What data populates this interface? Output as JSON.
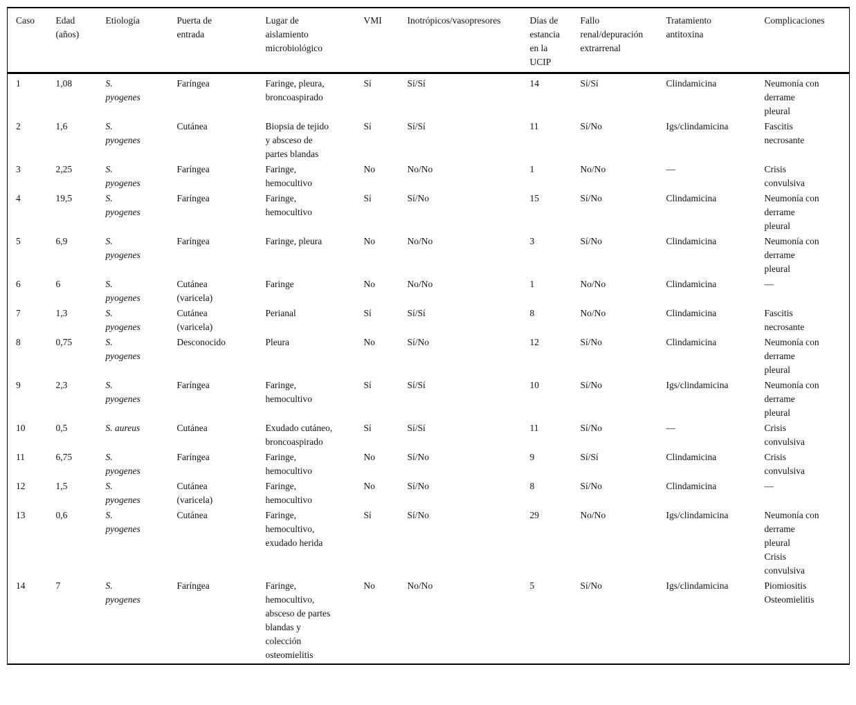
{
  "table": {
    "columns": [
      "Caso",
      "Edad (años)",
      "Etiología",
      "Puerta de entrada",
      "Lugar de aislamiento microbiológico",
      "VMI",
      "Inotrópicos/vasopresores",
      "Días de estancia en la UCIP",
      "Fallo renal/depuración extrarrenal",
      "Tratamiento antitoxina",
      "Complicaciones"
    ],
    "keys": [
      "caso",
      "edad",
      "etiologia",
      "puerta",
      "lugar",
      "vmi",
      "inotropicos",
      "dias",
      "fallo",
      "tratamiento",
      "complicaciones"
    ],
    "rows": [
      {
        "caso": "1",
        "edad": "1,08",
        "etiologia": "S. pyogenes",
        "puerta": "Faríngea",
        "lugar": "Faringe, pleura, broncoaspirado",
        "vmi": "Sí",
        "inotropicos": "Sí/Sí",
        "dias": "14",
        "fallo": "Sí/Sí",
        "tratamiento": "Clindamicina",
        "complicaciones": [
          "Neumonía con derrame pleural"
        ]
      },
      {
        "caso": "2",
        "edad": "1,6",
        "etiologia": "S. pyogenes",
        "puerta": "Cutánea",
        "lugar": "Biopsia de tejido y absceso de partes blandas",
        "vmi": "Sí",
        "inotropicos": "Sí/Sí",
        "dias": "11",
        "fallo": "Sí/No",
        "tratamiento": "Igs/clindamicina",
        "complicaciones": [
          "Fascitis necrosante"
        ]
      },
      {
        "caso": "3",
        "edad": "2,25",
        "etiologia": "S. pyogenes",
        "puerta": "Faríngea",
        "lugar": "Faringe, hemocultivo",
        "vmi": "No",
        "inotropicos": "No/No",
        "dias": "1",
        "fallo": "No/No",
        "tratamiento": "—",
        "complicaciones": [
          "Crisis convulsiva"
        ]
      },
      {
        "caso": "4",
        "edad": "19,5",
        "etiologia": "S. pyogenes",
        "puerta": "Faríngea",
        "lugar": "Faringe, hemocultivo",
        "vmi": "Sí",
        "inotropicos": "Sí/No",
        "dias": "15",
        "fallo": "Sí/No",
        "tratamiento": "Clindamicina",
        "complicaciones": [
          "Neumonía con derrame pleural"
        ]
      },
      {
        "caso": "5",
        "edad": "6,9",
        "etiologia": "S. pyogenes",
        "puerta": "Faríngea",
        "lugar": "Faringe, pleura",
        "vmi": "No",
        "inotropicos": "No/No",
        "dias": "3",
        "fallo": "Sí/No",
        "tratamiento": "Clindamicina",
        "complicaciones": [
          "Neumonía con derrame pleural"
        ]
      },
      {
        "caso": "6",
        "edad": "6",
        "etiologia": "S. pyogenes",
        "puerta": "Cutánea (varicela)",
        "lugar": "Faringe",
        "vmi": "No",
        "inotropicos": "No/No",
        "dias": "1",
        "fallo": "No/No",
        "tratamiento": "Clindamicina",
        "complicaciones": [
          "—"
        ]
      },
      {
        "caso": "7",
        "edad": "1,3",
        "etiologia": "S. pyogenes",
        "puerta": "Cutánea (varicela)",
        "lugar": "Perianal",
        "vmi": "Sí",
        "inotropicos": "Sí/Sí",
        "dias": "8",
        "fallo": "No/No",
        "tratamiento": "Clindamicina",
        "complicaciones": [
          "Fascitis necrosante"
        ]
      },
      {
        "caso": "8",
        "edad": "0,75",
        "etiologia": "S. pyogenes",
        "puerta": "Desconocido",
        "lugar": "Pleura",
        "vmi": "No",
        "inotropicos": "Sí/No",
        "dias": "12",
        "fallo": "Sí/No",
        "tratamiento": "Clindamicina",
        "complicaciones": [
          "Neumonía con derrame pleural"
        ]
      },
      {
        "caso": "9",
        "edad": "2,3",
        "etiologia": "S. pyogenes",
        "puerta": "Faríngea",
        "lugar": "Faringe, hemocultivo",
        "vmi": "Sí",
        "inotropicos": "Sí/Sí",
        "dias": "10",
        "fallo": "Sí/No",
        "tratamiento": "Igs/clindamicina",
        "complicaciones": [
          "Neumonía con derrame pleural"
        ]
      },
      {
        "caso": "10",
        "edad": "0,5",
        "etiologia": "S. aureus",
        "puerta": "Cutánea",
        "lugar": "Exudado cutáneo, broncoaspirado",
        "vmi": "Sí",
        "inotropicos": "Sí/Sí",
        "dias": "11",
        "fallo": "Sí/No",
        "tratamiento": "—",
        "complicaciones": [
          "Crisis convulsiva"
        ]
      },
      {
        "caso": "11",
        "edad": "6,75",
        "etiologia": "S. pyogenes",
        "puerta": "Faríngea",
        "lugar": "Faringe, hemocultivo",
        "vmi": "No",
        "inotropicos": "Sí/No",
        "dias": "9",
        "fallo": "Sí/Sí",
        "tratamiento": "Clindamicina",
        "complicaciones": [
          "Crisis convulsiva"
        ]
      },
      {
        "caso": "12",
        "edad": "1,5",
        "etiologia": "S. pyogenes",
        "puerta": "Cutánea (varicela)",
        "lugar": "Faringe, hemocultivo",
        "vmi": "No",
        "inotropicos": "Sí/No",
        "dias": "8",
        "fallo": "Sí/No",
        "tratamiento": "Clindamicina",
        "complicaciones": [
          "—"
        ]
      },
      {
        "caso": "13",
        "edad": "0,6",
        "etiologia": "S. pyogenes",
        "puerta": "Cutánea",
        "lugar": "Faringe, hemocultivo, exudado herida",
        "vmi": "Sí",
        "inotropicos": "Sí/No",
        "dias": "29",
        "fallo": "No/No",
        "tratamiento": "Igs/clindamicina",
        "complicaciones": [
          "Neumonía con derrame pleural",
          "Crisis convulsiva"
        ]
      },
      {
        "caso": "14",
        "edad": "7",
        "etiologia": "S. pyogenes",
        "puerta": "Faríngea",
        "lugar": "Faringe, hemocultivo, absceso de partes blandas y colección osteomielitis",
        "vmi": "No",
        "inotropicos": "No/No",
        "dias": "5",
        "fallo": "Sí/No",
        "tratamiento": "Igs/clindamicina",
        "complicaciones": [
          "Piomiositis",
          "Osteomielitis"
        ]
      }
    ]
  }
}
